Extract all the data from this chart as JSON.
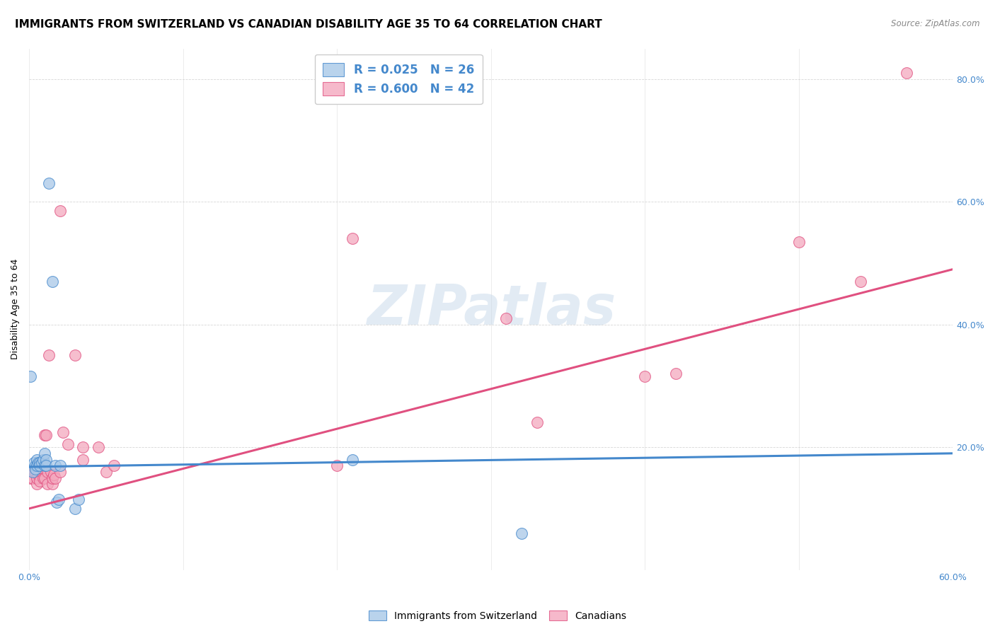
{
  "title": "IMMIGRANTS FROM SWITZERLAND VS CANADIAN DISABILITY AGE 35 TO 64 CORRELATION CHART",
  "source": "Source: ZipAtlas.com",
  "ylabel": "Disability Age 35 to 64",
  "legend_blue": "R = 0.025   N = 26",
  "legend_pink": "R = 0.600   N = 42",
  "legend_label_blue": "Immigrants from Switzerland",
  "legend_label_pink": "Canadians",
  "xlim": [
    0.0,
    0.6
  ],
  "ylim": [
    0.0,
    0.85
  ],
  "blue_scatter": [
    [
      0.001,
      0.315
    ],
    [
      0.002,
      0.16
    ],
    [
      0.003,
      0.175
    ],
    [
      0.004,
      0.17
    ],
    [
      0.004,
      0.165
    ],
    [
      0.005,
      0.18
    ],
    [
      0.005,
      0.17
    ],
    [
      0.006,
      0.175
    ],
    [
      0.007,
      0.175
    ],
    [
      0.007,
      0.17
    ],
    [
      0.008,
      0.175
    ],
    [
      0.009,
      0.18
    ],
    [
      0.01,
      0.17
    ],
    [
      0.01,
      0.19
    ],
    [
      0.011,
      0.18
    ],
    [
      0.011,
      0.17
    ],
    [
      0.013,
      0.63
    ],
    [
      0.015,
      0.47
    ],
    [
      0.017,
      0.17
    ],
    [
      0.018,
      0.11
    ],
    [
      0.019,
      0.115
    ],
    [
      0.02,
      0.17
    ],
    [
      0.03,
      0.1
    ],
    [
      0.032,
      0.115
    ],
    [
      0.21,
      0.18
    ],
    [
      0.32,
      0.06
    ]
  ],
  "pink_scatter": [
    [
      0.001,
      0.15
    ],
    [
      0.002,
      0.15
    ],
    [
      0.003,
      0.16
    ],
    [
      0.004,
      0.16
    ],
    [
      0.005,
      0.14
    ],
    [
      0.005,
      0.15
    ],
    [
      0.006,
      0.155
    ],
    [
      0.007,
      0.145
    ],
    [
      0.008,
      0.17
    ],
    [
      0.008,
      0.17
    ],
    [
      0.009,
      0.165
    ],
    [
      0.009,
      0.15
    ],
    [
      0.01,
      0.22
    ],
    [
      0.01,
      0.15
    ],
    [
      0.011,
      0.22
    ],
    [
      0.012,
      0.16
    ],
    [
      0.012,
      0.14
    ],
    [
      0.013,
      0.35
    ],
    [
      0.014,
      0.16
    ],
    [
      0.015,
      0.14
    ],
    [
      0.015,
      0.15
    ],
    [
      0.016,
      0.155
    ],
    [
      0.017,
      0.15
    ],
    [
      0.02,
      0.585
    ],
    [
      0.02,
      0.16
    ],
    [
      0.022,
      0.225
    ],
    [
      0.025,
      0.205
    ],
    [
      0.03,
      0.35
    ],
    [
      0.035,
      0.2
    ],
    [
      0.035,
      0.18
    ],
    [
      0.045,
      0.2
    ],
    [
      0.05,
      0.16
    ],
    [
      0.055,
      0.17
    ],
    [
      0.2,
      0.17
    ],
    [
      0.21,
      0.54
    ],
    [
      0.31,
      0.41
    ],
    [
      0.33,
      0.24
    ],
    [
      0.4,
      0.315
    ],
    [
      0.42,
      0.32
    ],
    [
      0.5,
      0.535
    ],
    [
      0.54,
      0.47
    ],
    [
      0.57,
      0.81
    ]
  ],
  "blue_line_x": [
    0.0,
    0.6
  ],
  "blue_line_y": [
    0.168,
    0.19
  ],
  "pink_line_x": [
    0.0,
    0.6
  ],
  "pink_line_y": [
    0.1,
    0.49
  ],
  "watermark": "ZIPatlas",
  "bg_color": "#ffffff",
  "blue_color": "#a8c8e8",
  "pink_color": "#f4a8be",
  "blue_line_color": "#4488cc",
  "pink_line_color": "#e05080",
  "title_fontsize": 11,
  "scatter_size": 130
}
